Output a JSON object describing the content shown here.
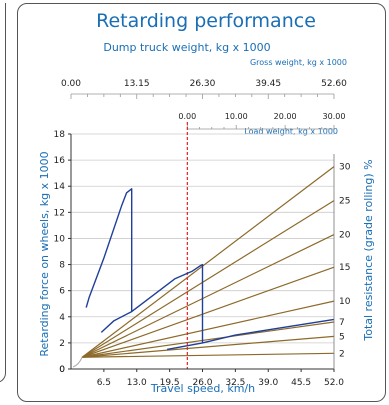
{
  "chart_data": {
    "type": "line",
    "title": "Retarding performance",
    "subtitle": "Dump truck weight, kg x 1000",
    "gross_axis": {
      "label": "Gross weight, kg x 1000",
      "ticks": [
        "0.00",
        "13.15",
        "26.30",
        "39.45",
        "52.60"
      ]
    },
    "load_axis": {
      "label": "Load weight, kg x 1000",
      "ticks": [
        "0.00",
        "10.00",
        "20.00",
        "30.00"
      ]
    },
    "xlabel": "Travel speed, km/h",
    "ylabel": "Retarding force on wheels, kg x 1000",
    "y2label": "Total resistance (grade   rolling) %",
    "xlim": [
      0,
      52
    ],
    "ylim": [
      0,
      18
    ],
    "x_ticks": [
      6.5,
      13.0,
      19.5,
      26.0,
      32.5,
      39.0,
      45.5,
      52.0
    ],
    "x_tick_labels": [
      "6.5",
      "13.0",
      "19.5",
      "26.0",
      "32.5",
      "39.0",
      "45.5",
      "52.0"
    ],
    "y_ticks": [
      0,
      2,
      4,
      6,
      8,
      10,
      12,
      14,
      16,
      18
    ],
    "y_tick_labels": [
      "0",
      "2",
      "4",
      "6",
      "8",
      "10",
      "12",
      "14",
      "16",
      "18"
    ],
    "resistance_lines": [
      {
        "percent": 2,
        "label": "2",
        "end_force": 1.2
      },
      {
        "percent": 5,
        "label": "5",
        "end_force": 2.5
      },
      {
        "percent": 7,
        "label": "7",
        "end_force": 3.6
      },
      {
        "percent": 10,
        "label": "10",
        "end_force": 5.2
      },
      {
        "percent": 15,
        "label": "15",
        "end_force": 7.8
      },
      {
        "percent": 20,
        "label": "20",
        "end_force": 10.3
      },
      {
        "percent": 25,
        "label": "25",
        "end_force": 12.9
      },
      {
        "percent": 30,
        "label": "30",
        "end_force": 15.5
      }
    ],
    "resistance_origin": [
      2.2,
      0.9
    ],
    "unloaded_reference_speed": 23.0,
    "series": [
      {
        "points": [
          [
            3.0,
            4.7
          ],
          [
            3.6,
            5.5
          ],
          [
            6.5,
            8.5
          ],
          [
            10.0,
            12.5
          ],
          [
            11.0,
            13.5
          ],
          [
            12.0,
            13.8
          ],
          [
            12.0,
            4.4
          ]
        ]
      },
      {
        "points": [
          [
            6.0,
            2.8
          ],
          [
            8.5,
            3.7
          ],
          [
            12.0,
            4.4
          ],
          [
            20.5,
            6.9
          ],
          [
            24.0,
            7.5
          ],
          [
            25.5,
            7.9
          ],
          [
            26.0,
            8.0
          ],
          [
            26.0,
            2.0
          ]
        ]
      },
      {
        "points": [
          [
            19.0,
            1.5
          ],
          [
            26.0,
            2.0
          ],
          [
            32.5,
            2.6
          ],
          [
            39.0,
            3.0
          ],
          [
            52.0,
            3.8
          ]
        ]
      }
    ],
    "colors": {
      "title": "#1a6eb5",
      "axis_text": "#222222",
      "resistance_line": "#8c6a2a",
      "series": "#1f3f99",
      "reference_line": "#e02020",
      "grid": "#cccccc"
    }
  }
}
